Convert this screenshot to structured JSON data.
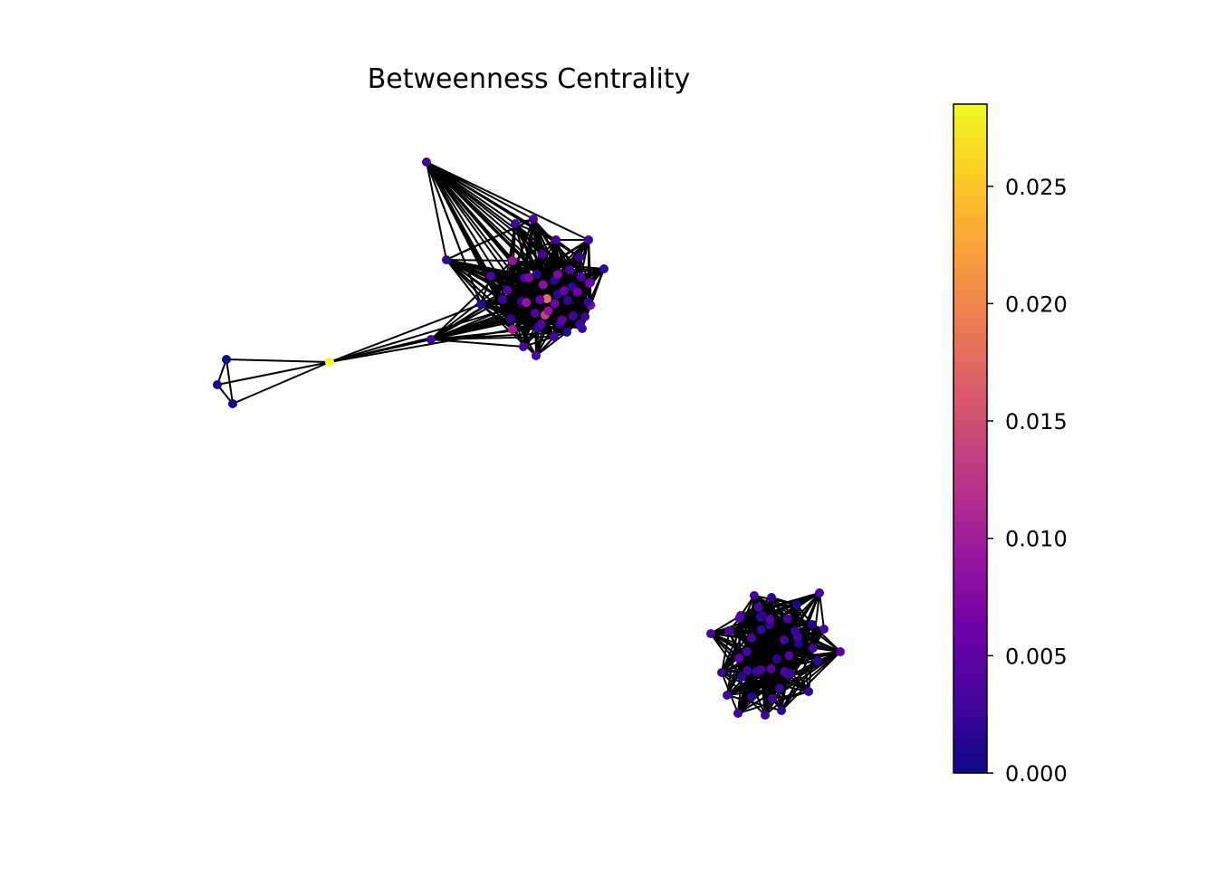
{
  "title": "Betweenness Centrality",
  "colorbar": {
    "colormap": "plasma",
    "min": 0.0,
    "max": 0.0285,
    "ticks": [
      {
        "value": 0.0,
        "label": "0.000"
      },
      {
        "value": 0.005,
        "label": "0.005"
      },
      {
        "value": 0.01,
        "label": "0.010"
      },
      {
        "value": 0.015,
        "label": "0.015"
      },
      {
        "value": 0.02,
        "label": "0.020"
      },
      {
        "value": 0.025,
        "label": "0.025"
      }
    ],
    "stops": [
      "#0d0887",
      "#46039f",
      "#7201a8",
      "#9c179e",
      "#bd3786",
      "#d8576b",
      "#ed7953",
      "#fb9f3a",
      "#fdca26",
      "#f0f921"
    ]
  },
  "edge_color": "#000000"
}
